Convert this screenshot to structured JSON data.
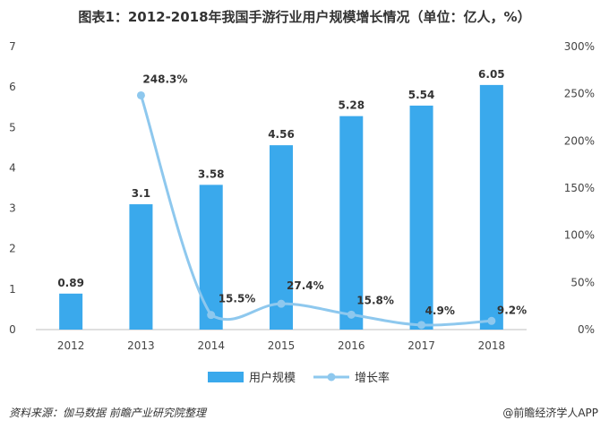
{
  "title": "图表1：2012-2018年我国手游行业用户规模增长情况（单位：亿人，%）",
  "footer": {
    "source": "资料来源：伽马数据 前瞻产业研究院整理",
    "brand": "@前瞻经济学人APP"
  },
  "chart_data": {
    "type": "bar",
    "categories": [
      "2012",
      "2013",
      "2014",
      "2015",
      "2016",
      "2017",
      "2018"
    ],
    "series": [
      {
        "name": "用户规模",
        "type": "bar",
        "axis": "left",
        "values": [
          0.89,
          3.1,
          3.58,
          4.56,
          5.28,
          5.54,
          6.05
        ],
        "labels": [
          "0.89",
          "3.1",
          "3.58",
          "4.56",
          "5.28",
          "5.54",
          "6.05"
        ]
      },
      {
        "name": "增长率",
        "type": "line",
        "axis": "right",
        "values": [
          null,
          248.3,
          15.5,
          27.4,
          15.8,
          4.9,
          9.2
        ],
        "labels": [
          "",
          "248.3%",
          "15.5%",
          "27.4%",
          "15.8%",
          "4.9%",
          "9.2%"
        ]
      }
    ],
    "y_left": {
      "min": 0,
      "max": 7,
      "ticks": [
        "0",
        "1",
        "2",
        "3",
        "4",
        "5",
        "6",
        "7"
      ]
    },
    "y_right": {
      "min": 0,
      "max": 300,
      "ticks": [
        "0%",
        "50%",
        "100%",
        "150%",
        "200%",
        "250%",
        "300%"
      ]
    },
    "grid": false,
    "legend": "bottom",
    "colors": {
      "bar": "#3aa9ec",
      "line": "#8ec8ee"
    }
  }
}
